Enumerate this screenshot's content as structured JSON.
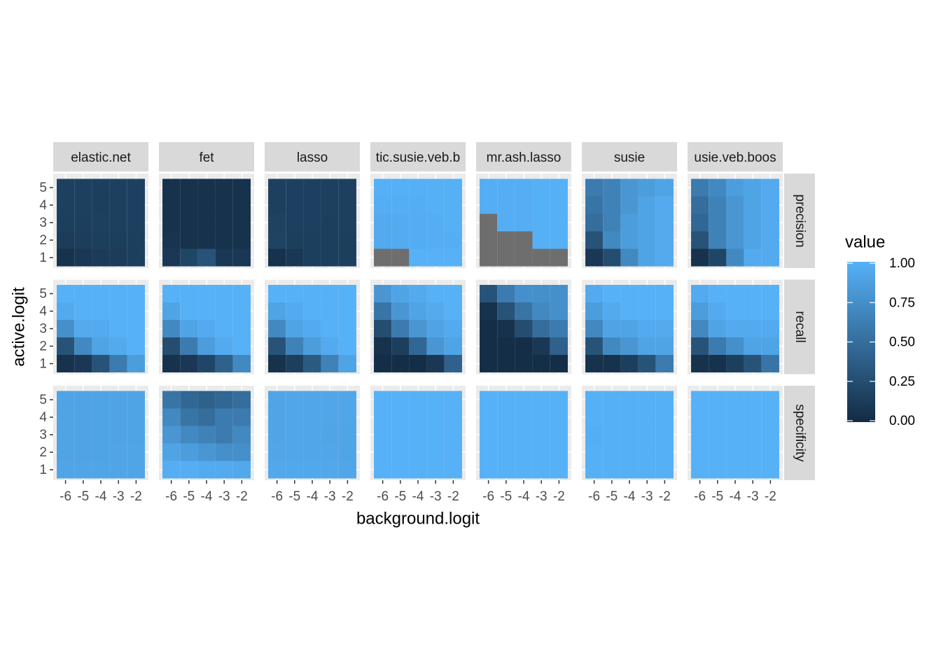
{
  "chart_data": {
    "type": "heatmap",
    "x_label": "background.logit",
    "y_label": "active.logit",
    "legend_title": "value",
    "columns": [
      "elastic.net",
      "fet",
      "lasso",
      "tic.susie.veb.b",
      "mr.ash.lasso",
      "susie",
      "usie.veb.boos"
    ],
    "rows": [
      "precision",
      "recall",
      "specificity"
    ],
    "x": [
      -6,
      -5,
      -4,
      -3,
      -2
    ],
    "y": [
      1,
      2,
      3,
      4,
      5
    ],
    "xlim": [
      -6.7,
      -1.3
    ],
    "ylim": [
      0.4,
      5.8
    ],
    "xticks": [
      -6,
      -5,
      -4,
      -3,
      -2
    ],
    "yticks": [
      1,
      2,
      3,
      4,
      5
    ],
    "low": "#132B43",
    "high": "#56B1F7",
    "na_color": "#6E6E6E",
    "grid": true,
    "legend_position": "right",
    "color_limits": [
      0,
      1
    ],
    "color_ticks": [
      {
        "value": 0,
        "label": "0.00"
      },
      {
        "value": 0.25,
        "label": "0.25"
      },
      {
        "value": 0.5,
        "label": "0.50"
      },
      {
        "value": 0.75,
        "label": "0.75"
      },
      {
        "value": 1,
        "label": "1.00"
      }
    ],
    "values": [
      [
        [
          [
            0.05,
            0.1,
            0.12,
            0.13,
            0.15
          ],
          [
            0.13,
            0.14,
            0.15,
            0.15,
            0.15
          ],
          [
            0.15,
            0.15,
            0.16,
            0.16,
            0.16
          ],
          [
            0.16,
            0.16,
            0.15,
            0.16,
            0.16
          ],
          [
            0.16,
            0.16,
            0.15,
            0.16,
            0.16
          ]
        ],
        [
          [
            0.1,
            0.2,
            0.3,
            0.1,
            0.1
          ],
          [
            0.07,
            0.05,
            0.05,
            0.05,
            0.05
          ],
          [
            0.05,
            0.05,
            0.05,
            0.05,
            0.05
          ],
          [
            0.05,
            0.05,
            0.05,
            0.05,
            0.05
          ],
          [
            0.05,
            0.05,
            0.05,
            0.05,
            0.05
          ]
        ],
        [
          [
            0.05,
            0.1,
            0.15,
            0.15,
            0.15
          ],
          [
            0.18,
            0.15,
            0.15,
            0.15,
            0.15
          ],
          [
            0.17,
            0.16,
            0.16,
            0.15,
            0.16
          ],
          [
            0.16,
            0.16,
            0.16,
            0.16,
            0.16
          ],
          [
            0.16,
            0.16,
            0.16,
            0.16,
            0.16
          ]
        ],
        [
          [
            null,
            null,
            1,
            1,
            1
          ],
          [
            0.95,
            0.96,
            0.97,
            0.98,
            0.98
          ],
          [
            0.95,
            0.96,
            0.97,
            0.98,
            0.99
          ],
          [
            0.98,
            0.98,
            0.98,
            0.99,
            0.99
          ],
          [
            0.99,
            0.99,
            0.99,
            0.99,
            0.99
          ]
        ],
        [
          [
            null,
            null,
            null,
            null,
            null
          ],
          [
            null,
            null,
            null,
            0.99,
            0.99
          ],
          [
            null,
            0.98,
            0.98,
            0.99,
            0.99
          ],
          [
            0.98,
            0.98,
            0.98,
            0.99,
            0.99
          ],
          [
            0.98,
            0.98,
            0.98,
            0.99,
            0.99
          ]
        ],
        [
          [
            0.1,
            0.25,
            0.7,
            0.9,
            0.95
          ],
          [
            0.3,
            0.7,
            0.85,
            0.9,
            0.95
          ],
          [
            0.5,
            0.65,
            0.85,
            0.9,
            0.95
          ],
          [
            0.55,
            0.65,
            0.8,
            0.9,
            0.95
          ],
          [
            0.6,
            0.65,
            0.8,
            0.85,
            0.9
          ]
        ],
        [
          [
            0.05,
            0.2,
            0.7,
            0.95,
            0.95
          ],
          [
            0.3,
            0.65,
            0.8,
            0.9,
            0.95
          ],
          [
            0.45,
            0.65,
            0.8,
            0.9,
            0.95
          ],
          [
            0.5,
            0.65,
            0.8,
            0.9,
            0.95
          ],
          [
            0.6,
            0.7,
            0.85,
            0.9,
            0.95
          ]
        ]
      ],
      [
        [
          [
            0.05,
            0.1,
            0.3,
            0.6,
            0.85
          ],
          [
            0.3,
            0.7,
            0.9,
            0.95,
            1
          ],
          [
            0.75,
            0.95,
            0.95,
            1,
            1
          ],
          [
            0.95,
            1,
            1,
            1,
            1
          ],
          [
            1,
            1,
            1,
            1,
            1
          ]
        ],
        [
          [
            0.05,
            0.1,
            0.2,
            0.4,
            0.7
          ],
          [
            0.25,
            0.6,
            0.85,
            0.95,
            1
          ],
          [
            0.7,
            0.9,
            0.95,
            1,
            1
          ],
          [
            0.9,
            1,
            1,
            1,
            1
          ],
          [
            1,
            1,
            1,
            1,
            1
          ]
        ],
        [
          [
            0.05,
            0.15,
            0.35,
            0.65,
            0.9
          ],
          [
            0.3,
            0.65,
            0.85,
            0.95,
            1
          ],
          [
            0.7,
            0.9,
            0.95,
            1,
            1
          ],
          [
            0.9,
            0.95,
            1,
            1,
            1
          ],
          [
            1,
            1,
            1,
            1,
            1
          ]
        ],
        [
          [
            0.02,
            0.02,
            0.02,
            0.1,
            0.4
          ],
          [
            0.05,
            0.15,
            0.45,
            0.8,
            0.9
          ],
          [
            0.25,
            0.6,
            0.8,
            0.9,
            0.95
          ],
          [
            0.55,
            0.8,
            0.9,
            0.95,
            1
          ],
          [
            0.8,
            0.9,
            0.95,
            1,
            1
          ]
        ],
        [
          [
            0.02,
            0.02,
            0.02,
            0.02,
            0.02
          ],
          [
            0.02,
            0.02,
            0.02,
            0.1,
            0.4
          ],
          [
            0.02,
            0.05,
            0.25,
            0.5,
            0.6
          ],
          [
            0.05,
            0.3,
            0.55,
            0.7,
            0.75
          ],
          [
            0.3,
            0.6,
            0.75,
            0.75,
            0.75
          ]
        ],
        [
          [
            0.05,
            0.05,
            0.15,
            0.3,
            0.6
          ],
          [
            0.3,
            0.7,
            0.8,
            0.9,
            0.9
          ],
          [
            0.7,
            0.9,
            0.9,
            0.95,
            0.95
          ],
          [
            0.85,
            0.95,
            1,
            1,
            1
          ],
          [
            0.95,
            1,
            1,
            1,
            1
          ]
        ],
        [
          [
            0.05,
            0.05,
            0.15,
            0.3,
            0.55
          ],
          [
            0.3,
            0.6,
            0.75,
            0.9,
            0.9
          ],
          [
            0.7,
            0.9,
            0.95,
            0.95,
            0.95
          ],
          [
            0.85,
            0.95,
            1,
            1,
            1
          ],
          [
            0.95,
            1,
            1,
            1,
            1
          ]
        ]
      ],
      [
        [
          [
            0.91,
            0.91,
            0.91,
            0.91,
            0.91
          ],
          [
            0.9,
            0.9,
            0.9,
            0.91,
            0.91
          ],
          [
            0.9,
            0.9,
            0.9,
            0.9,
            0.9
          ],
          [
            0.9,
            0.9,
            0.9,
            0.9,
            0.9
          ],
          [
            0.9,
            0.9,
            0.9,
            0.9,
            0.9
          ]
        ],
        [
          [
            0.98,
            0.98,
            0.95,
            0.95,
            0.93
          ],
          [
            0.9,
            0.85,
            0.8,
            0.75,
            0.75
          ],
          [
            0.8,
            0.7,
            0.65,
            0.6,
            0.7
          ],
          [
            0.7,
            0.55,
            0.5,
            0.6,
            0.6
          ],
          [
            0.55,
            0.45,
            0.4,
            0.45,
            0.5
          ]
        ],
        [
          [
            0.93,
            0.93,
            0.93,
            0.93,
            0.92
          ],
          [
            0.92,
            0.92,
            0.92,
            0.92,
            0.91
          ],
          [
            0.91,
            0.92,
            0.92,
            0.91,
            0.91
          ],
          [
            0.91,
            0.92,
            0.92,
            0.92,
            0.92
          ],
          [
            0.91,
            0.92,
            0.92,
            0.92,
            0.92
          ]
        ],
        [
          [
            1,
            1,
            1,
            1,
            1
          ],
          [
            1,
            1,
            1,
            1,
            1
          ],
          [
            1,
            1,
            1,
            1,
            1
          ],
          [
            1,
            1,
            1,
            1,
            1
          ],
          [
            1,
            1,
            1,
            1,
            1
          ]
        ],
        [
          [
            1,
            1,
            1,
            1,
            1
          ],
          [
            1,
            1,
            1,
            1,
            1
          ],
          [
            1,
            1,
            1,
            1,
            1
          ],
          [
            1,
            1,
            1,
            1,
            1
          ],
          [
            1,
            1,
            1,
            1,
            1
          ]
        ],
        [
          [
            0.99,
            0.99,
            0.99,
            0.99,
            0.99
          ],
          [
            0.99,
            0.99,
            0.99,
            0.99,
            0.99
          ],
          [
            0.98,
            0.99,
            0.99,
            0.99,
            0.99
          ],
          [
            0.99,
            0.99,
            0.99,
            0.99,
            0.99
          ],
          [
            0.99,
            0.99,
            0.99,
            0.99,
            0.99
          ]
        ],
        [
          [
            1,
            1,
            1,
            1,
            1
          ],
          [
            1,
            1,
            1,
            1,
            1
          ],
          [
            1,
            1,
            1,
            1,
            1
          ],
          [
            1,
            1,
            1,
            1,
            1
          ],
          [
            1,
            1,
            1,
            1,
            1
          ]
        ]
      ]
    ]
  }
}
